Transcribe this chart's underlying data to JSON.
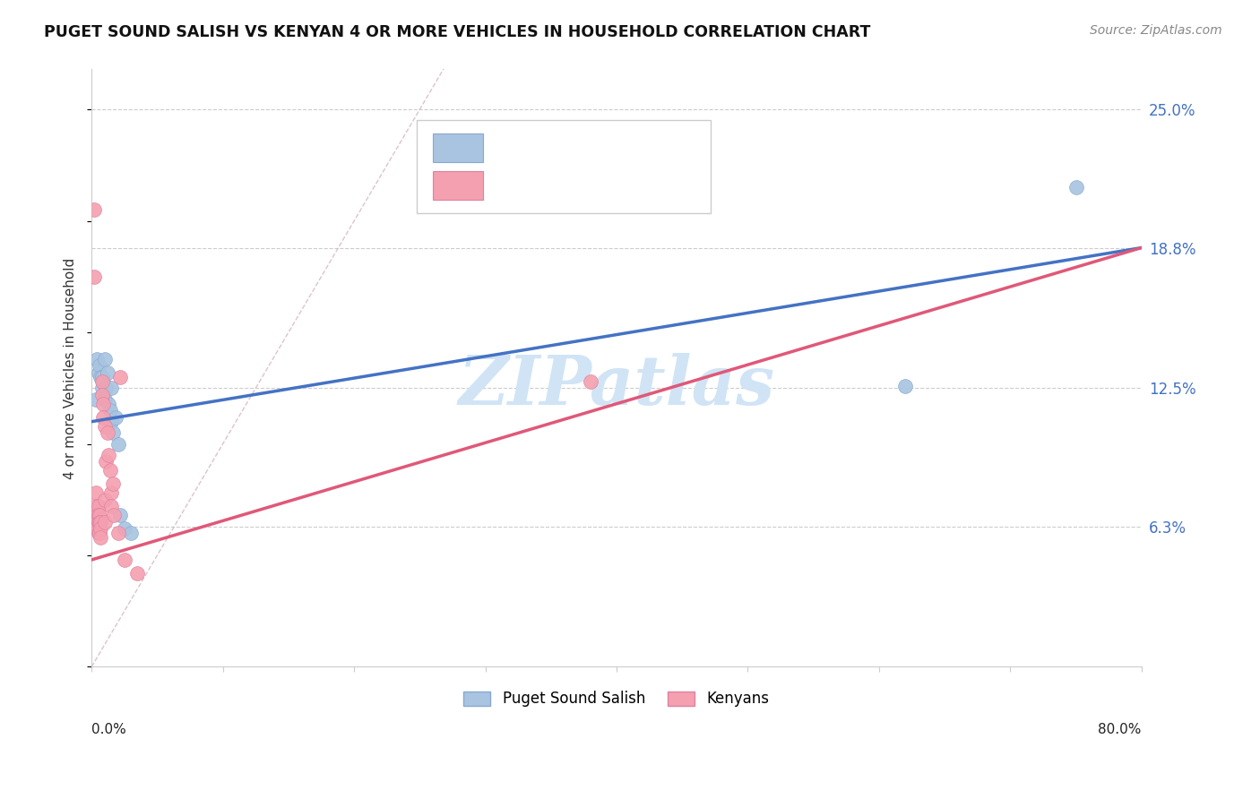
{
  "title": "PUGET SOUND SALISH VS KENYAN 4 OR MORE VEHICLES IN HOUSEHOLD CORRELATION CHART",
  "source": "Source: ZipAtlas.com",
  "ylabel": "4 or more Vehicles in Household",
  "ylabel_ticks": [
    "6.3%",
    "12.5%",
    "18.8%",
    "25.0%"
  ],
  "ylabel_tick_vals": [
    0.063,
    0.125,
    0.188,
    0.25
  ],
  "xmin": 0.0,
  "xmax": 0.8,
  "ymin": 0.0,
  "ymax": 0.268,
  "legend_label_blue": "Puget Sound Salish",
  "legend_label_pink": "Kenyans",
  "blue_scatter_color": "#a8c4e0",
  "pink_scatter_color": "#f4a0b0",
  "blue_edge_color": "#88a8d0",
  "pink_edge_color": "#e080a0",
  "blue_line_color": "#4472c4",
  "pink_line_color": "#e05878",
  "diagonal_color": "#ccaabb",
  "watermark_color": "#d0e4f5",
  "blue_points_x": [
    0.003,
    0.004,
    0.005,
    0.006,
    0.007,
    0.008,
    0.008,
    0.009,
    0.01,
    0.01,
    0.011,
    0.012,
    0.013,
    0.014,
    0.015,
    0.015,
    0.016,
    0.018,
    0.02,
    0.022,
    0.025,
    0.03,
    0.62,
    0.75
  ],
  "blue_points_y": [
    0.12,
    0.138,
    0.132,
    0.135,
    0.13,
    0.13,
    0.125,
    0.128,
    0.138,
    0.12,
    0.125,
    0.132,
    0.118,
    0.115,
    0.125,
    0.11,
    0.105,
    0.112,
    0.1,
    0.068,
    0.062,
    0.06,
    0.126,
    0.215
  ],
  "pink_points_x": [
    0.002,
    0.002,
    0.003,
    0.003,
    0.004,
    0.004,
    0.004,
    0.005,
    0.005,
    0.005,
    0.005,
    0.006,
    0.006,
    0.006,
    0.007,
    0.007,
    0.007,
    0.008,
    0.008,
    0.009,
    0.009,
    0.01,
    0.01,
    0.01,
    0.011,
    0.012,
    0.013,
    0.014,
    0.015,
    0.015,
    0.016,
    0.017,
    0.02,
    0.022,
    0.025,
    0.035,
    0.38
  ],
  "pink_points_y": [
    0.205,
    0.175,
    0.078,
    0.072,
    0.068,
    0.065,
    0.062,
    0.072,
    0.068,
    0.065,
    0.06,
    0.068,
    0.065,
    0.06,
    0.065,
    0.062,
    0.058,
    0.128,
    0.122,
    0.118,
    0.112,
    0.108,
    0.075,
    0.065,
    0.092,
    0.105,
    0.095,
    0.088,
    0.078,
    0.072,
    0.082,
    0.068,
    0.06,
    0.13,
    0.048,
    0.042,
    0.128
  ],
  "blue_line_x": [
    0.0,
    0.8
  ],
  "blue_line_y": [
    0.11,
    0.188
  ],
  "pink_line_x": [
    0.0,
    0.8
  ],
  "pink_line_y": [
    0.048,
    0.188
  ]
}
